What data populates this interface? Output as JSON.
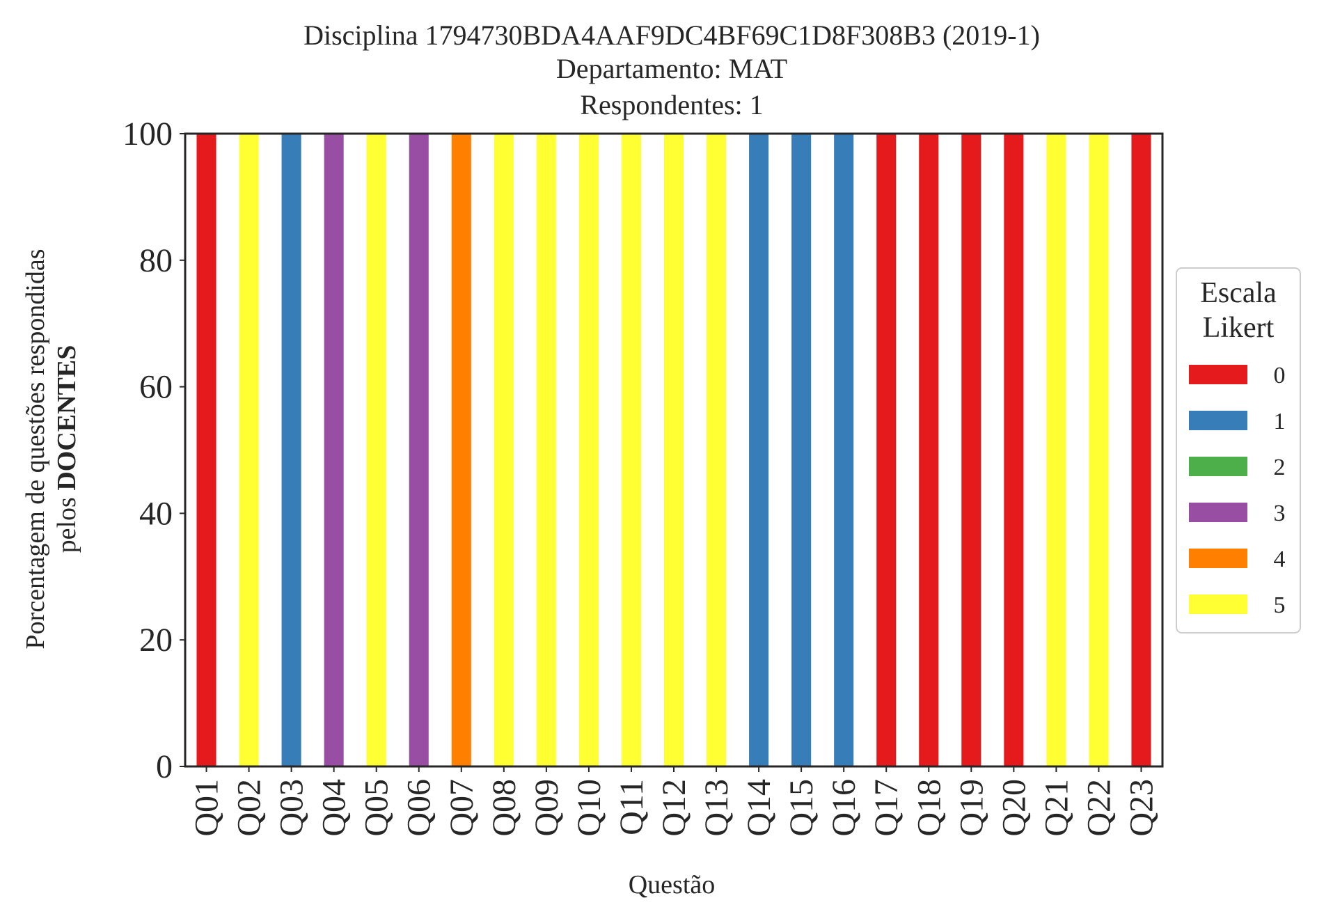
{
  "chart_data": {
    "type": "bar",
    "stacked": true,
    "title_lines": [
      "Disciplina 1794730BDA4AAF9DC4BF69C1D8F308B3 (2019-1)",
      "Departamento: MAT",
      "Respondentes: 1"
    ],
    "xlabel": "Questão",
    "ylabel_line1": "Porcentagem de questões respondidas",
    "ylabel_line2_prefix": "pelos ",
    "ylabel_line2_bold": "DOCENTES",
    "ylim": [
      0,
      100
    ],
    "yticks": [
      "0",
      "20",
      "40",
      "60",
      "80",
      "100"
    ],
    "categories": [
      "Q01",
      "Q02",
      "Q03",
      "Q04",
      "Q05",
      "Q06",
      "Q07",
      "Q08",
      "Q09",
      "Q10",
      "Q11",
      "Q12",
      "Q13",
      "Q14",
      "Q15",
      "Q16",
      "Q17",
      "Q18",
      "Q19",
      "Q20",
      "Q21",
      "Q22",
      "Q23"
    ],
    "series": [
      {
        "name": "0",
        "color": "#e41a1c",
        "values": [
          100,
          0,
          0,
          0,
          0,
          0,
          0,
          0,
          0,
          0,
          0,
          0,
          0,
          0,
          0,
          0,
          100,
          100,
          100,
          100,
          0,
          0,
          100
        ]
      },
      {
        "name": "1",
        "color": "#377eb8",
        "values": [
          0,
          0,
          100,
          0,
          0,
          0,
          0,
          0,
          0,
          0,
          0,
          0,
          0,
          100,
          100,
          100,
          0,
          0,
          0,
          0,
          0,
          0,
          0
        ]
      },
      {
        "name": "2",
        "color": "#4daf4a",
        "values": [
          0,
          0,
          0,
          0,
          0,
          0,
          0,
          0,
          0,
          0,
          0,
          0,
          0,
          0,
          0,
          0,
          0,
          0,
          0,
          0,
          0,
          0,
          0
        ]
      },
      {
        "name": "3",
        "color": "#984ea3",
        "values": [
          0,
          0,
          0,
          100,
          0,
          100,
          0,
          0,
          0,
          0,
          0,
          0,
          0,
          0,
          0,
          0,
          0,
          0,
          0,
          0,
          0,
          0,
          0
        ]
      },
      {
        "name": "4",
        "color": "#ff7f00",
        "values": [
          0,
          0,
          0,
          0,
          0,
          0,
          100,
          0,
          0,
          0,
          0,
          0,
          0,
          0,
          0,
          0,
          0,
          0,
          0,
          0,
          0,
          0,
          0
        ]
      },
      {
        "name": "5",
        "color": "#ffff33",
        "values": [
          0,
          100,
          0,
          0,
          100,
          0,
          0,
          100,
          100,
          100,
          100,
          100,
          100,
          0,
          0,
          0,
          0,
          0,
          0,
          0,
          100,
          100,
          0
        ]
      }
    ],
    "legend": {
      "title_lines": [
        "Escala",
        "Likert"
      ],
      "placement": "center-right outside"
    },
    "grid": false
  }
}
